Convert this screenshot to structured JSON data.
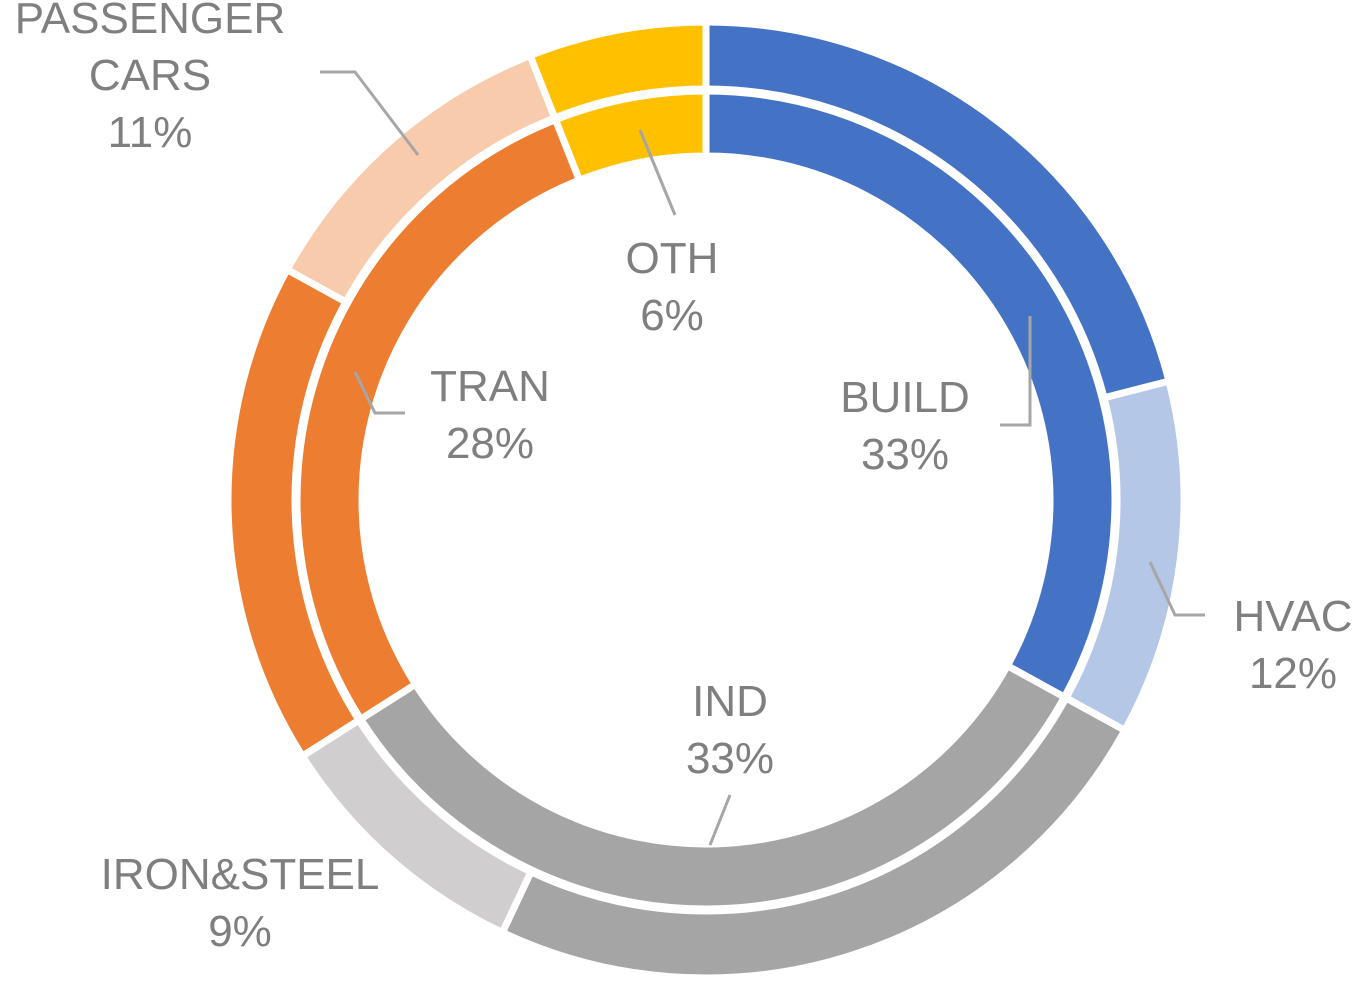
{
  "chart_data": {
    "type": "donut",
    "rings": [
      {
        "categories": [
          "BUILD",
          "IND",
          "TRAN",
          "OTH"
        ],
        "values": [
          33,
          33,
          28,
          6
        ],
        "value_labels": [
          "33%",
          "33%",
          "28%",
          "6%"
        ],
        "colors": [
          "#4472c4",
          "#a5a5a5",
          "#ed7d31",
          "#ffc000"
        ]
      },
      {
        "categories": [
          null,
          "HVAC",
          null,
          "IRON&STEEL",
          null,
          "PASSENGER CARS",
          null
        ],
        "values": [
          21,
          12,
          24,
          9,
          17,
          11,
          6
        ],
        "value_labels": [
          null,
          "12%",
          null,
          "9%",
          null,
          "11%",
          null
        ],
        "colors": [
          "#4472c4",
          "#b4c7e7",
          "#a5a5a5",
          "#d0cece",
          "#ed7d31",
          "#f8cbad",
          "#ffc000"
        ]
      }
    ]
  }
}
